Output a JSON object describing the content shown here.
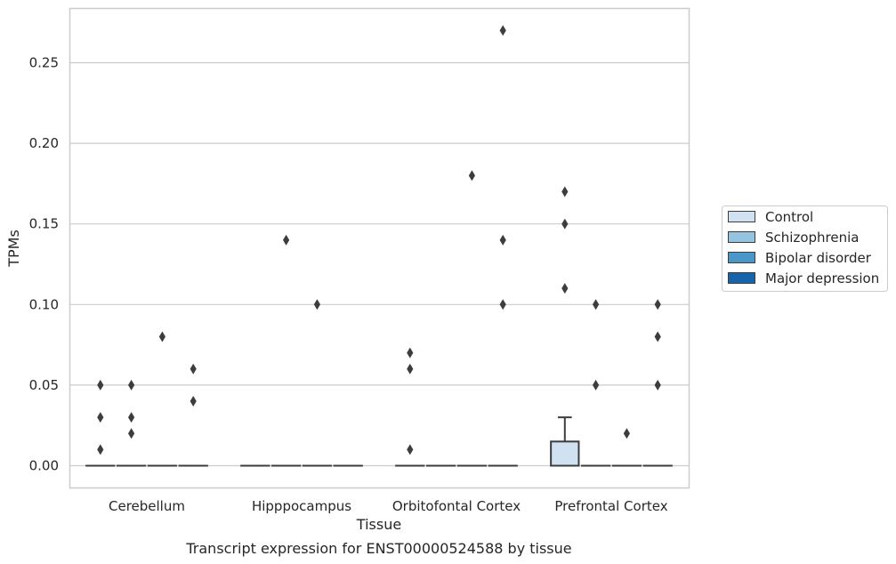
{
  "chart_data": {
    "type": "box",
    "title": "",
    "caption": "Transcript expression for ENST00000524588 by tissue",
    "xlabel": "Tissue",
    "ylabel": "TPMs",
    "ylim": [
      -0.013,
      0.284
    ],
    "yticks": [
      0.0,
      0.05,
      0.1,
      0.15,
      0.2,
      0.25
    ],
    "ytick_labels": [
      "0.00",
      "0.05",
      "0.10",
      "0.15",
      "0.20",
      "0.25"
    ],
    "categories": [
      "Cerebellum",
      "Hipppocampus",
      "Orbitofontal Cortex",
      "Prefrontal Cortex"
    ],
    "grid": "horizontal",
    "legend_position": "right",
    "series": [
      {
        "name": "Control",
        "color": "#d0e1f2",
        "boxes": [
          {
            "q1": 0,
            "median": 0,
            "q3": 0,
            "whisker_low": 0,
            "whisker_high": 0,
            "outliers": [
              0.01,
              0.03,
              0.05
            ]
          },
          {
            "q1": 0,
            "median": 0,
            "q3": 0,
            "whisker_low": 0,
            "whisker_high": 0,
            "outliers": []
          },
          {
            "q1": 0,
            "median": 0,
            "q3": 0,
            "whisker_low": 0,
            "whisker_high": 0,
            "outliers": [
              0.01,
              0.06,
              0.07
            ]
          },
          {
            "q1": 0,
            "median": 0,
            "q3": 0.015,
            "whisker_low": 0,
            "whisker_high": 0.03,
            "outliers": [
              0.11,
              0.15,
              0.17
            ]
          }
        ]
      },
      {
        "name": "Schizophrenia",
        "color": "#94c4df",
        "boxes": [
          {
            "q1": 0,
            "median": 0,
            "q3": 0,
            "whisker_low": 0,
            "whisker_high": 0,
            "outliers": [
              0.02,
              0.03,
              0.05
            ]
          },
          {
            "q1": 0,
            "median": 0,
            "q3": 0,
            "whisker_low": 0,
            "whisker_high": 0,
            "outliers": [
              0.14
            ]
          },
          {
            "q1": 0,
            "median": 0,
            "q3": 0,
            "whisker_low": 0,
            "whisker_high": 0,
            "outliers": []
          },
          {
            "q1": 0,
            "median": 0,
            "q3": 0,
            "whisker_low": 0,
            "whisker_high": 0,
            "outliers": [
              0.05,
              0.1
            ]
          }
        ]
      },
      {
        "name": "Bipolar disorder",
        "color": "#4a98c9",
        "boxes": [
          {
            "q1": 0,
            "median": 0,
            "q3": 0,
            "whisker_low": 0,
            "whisker_high": 0,
            "outliers": [
              0.08
            ]
          },
          {
            "q1": 0,
            "median": 0,
            "q3": 0,
            "whisker_low": 0,
            "whisker_high": 0,
            "outliers": [
              0.1
            ]
          },
          {
            "q1": 0,
            "median": 0,
            "q3": 0,
            "whisker_low": 0,
            "whisker_high": 0,
            "outliers": [
              0.18
            ]
          },
          {
            "q1": 0,
            "median": 0,
            "q3": 0,
            "whisker_low": 0,
            "whisker_high": 0,
            "outliers": [
              0.02
            ]
          }
        ]
      },
      {
        "name": "Major depression",
        "color": "#1764ab",
        "boxes": [
          {
            "q1": 0,
            "median": 0,
            "q3": 0,
            "whisker_low": 0,
            "whisker_high": 0,
            "outliers": [
              0.04,
              0.06
            ]
          },
          {
            "q1": 0,
            "median": 0,
            "q3": 0,
            "whisker_low": 0,
            "whisker_high": 0,
            "outliers": []
          },
          {
            "q1": 0,
            "median": 0,
            "q3": 0,
            "whisker_low": 0,
            "whisker_high": 0,
            "outliers": [
              0.1,
              0.14,
              0.27
            ]
          },
          {
            "q1": 0,
            "median": 0,
            "q3": 0,
            "whisker_low": 0,
            "whisker_high": 0,
            "outliers": [
              0.05,
              0.08,
              0.1
            ]
          }
        ]
      }
    ]
  },
  "colors": {
    "grid": "#cccccc",
    "frame": "#cccccc",
    "box_edge": "#3d3d3d",
    "outlier": "#3d3d3d"
  }
}
